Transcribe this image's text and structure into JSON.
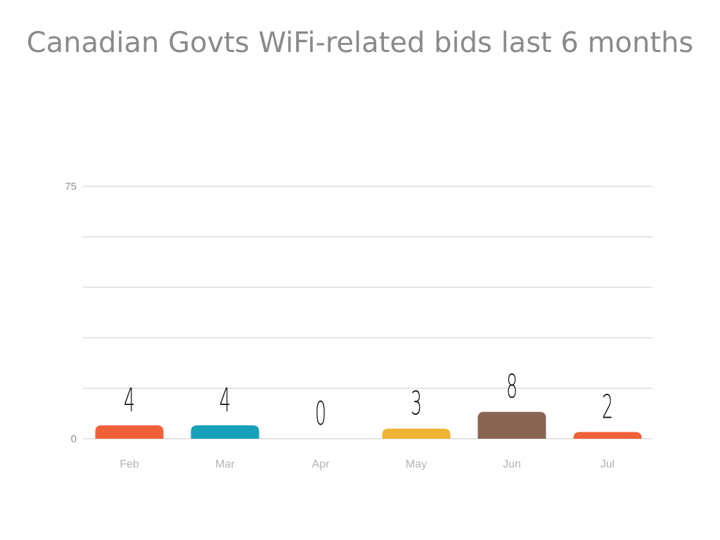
{
  "page": {
    "title": "Canadian Govts WiFi-related bids last 6 months"
  },
  "chart_data": {
    "type": "bar",
    "title": "Canadian Govts WiFi-related bids last 6 months",
    "xlabel": "",
    "ylabel": "",
    "categories": [
      "Feb",
      "Mar",
      "Apr",
      "May",
      "Jun",
      "Jul"
    ],
    "values": [
      4,
      4,
      0,
      3,
      8,
      2
    ],
    "bar_colors": [
      "#f0613a",
      "#17a1b8",
      "#f0613a",
      "#efb434",
      "#8a6652",
      "#f0613a"
    ],
    "ylim": [
      0,
      75
    ],
    "yticks": [
      0,
      75
    ],
    "grid": true,
    "gridline_values": [
      0,
      15,
      30,
      45,
      60,
      75
    ],
    "gridline_color": "#dddddd",
    "legend": "none",
    "data_labels": true
  }
}
